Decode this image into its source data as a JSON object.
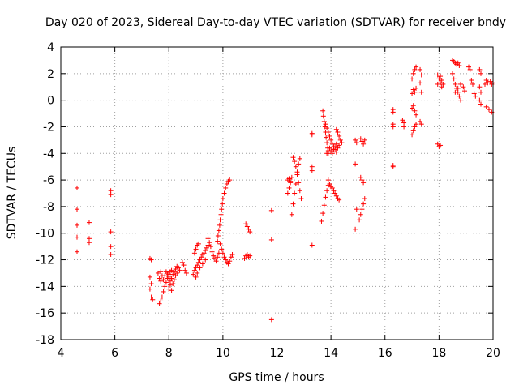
{
  "chart_data": {
    "type": "scatter",
    "title": "Day 020 of 2023, Sidereal Day-to-day VTEC variation (SDTVAR) for receiver bndy",
    "xlabel": "GPS time / hours",
    "ylabel": "SDTVAR / TECUs",
    "xlim": [
      4,
      20
    ],
    "ylim": [
      -18,
      4
    ],
    "xticks": [
      "4",
      "6",
      "8",
      "10",
      "12",
      "14",
      "16",
      "18",
      "20"
    ],
    "yticks": [
      "-18",
      "-16",
      "-14",
      "-12",
      "-10",
      "-8",
      "-6",
      "-4",
      "-2",
      "0",
      "2",
      "4"
    ],
    "grid": true,
    "marker": "+",
    "color": "#ff0000",
    "series": [
      {
        "name": "bndy",
        "points": [
          [
            4.6,
            -6.6
          ],
          [
            4.6,
            -8.2
          ],
          [
            4.6,
            -9.4
          ],
          [
            4.6,
            -10.3
          ],
          [
            4.6,
            -11.4
          ],
          [
            5.05,
            -9.2
          ],
          [
            5.05,
            -10.4
          ],
          [
            5.05,
            -10.7
          ],
          [
            5.85,
            -6.8
          ],
          [
            5.85,
            -7.1
          ],
          [
            5.85,
            -9.9
          ],
          [
            5.85,
            -11.0
          ],
          [
            5.85,
            -11.6
          ],
          [
            7.3,
            -11.9
          ],
          [
            7.35,
            -12.0
          ],
          [
            7.3,
            -13.3
          ],
          [
            7.35,
            -13.8
          ],
          [
            7.3,
            -14.2
          ],
          [
            7.35,
            -14.8
          ],
          [
            7.4,
            -15.0
          ],
          [
            7.65,
            -15.3
          ],
          [
            7.7,
            -15.1
          ],
          [
            7.75,
            -14.8
          ],
          [
            7.8,
            -14.4
          ],
          [
            7.85,
            -14.0
          ],
          [
            7.9,
            -13.7
          ],
          [
            7.95,
            -13.4
          ],
          [
            8.0,
            -13.1
          ],
          [
            8.05,
            -12.9
          ],
          [
            8.1,
            -12.8
          ],
          [
            7.7,
            -12.9
          ],
          [
            7.75,
            -13.2
          ],
          [
            7.8,
            -13.5
          ],
          [
            7.85,
            -13.2
          ],
          [
            7.9,
            -12.9
          ],
          [
            7.95,
            -13.0
          ],
          [
            8.0,
            -13.3
          ],
          [
            8.05,
            -13.6
          ],
          [
            8.1,
            -13.4
          ],
          [
            8.15,
            -13.1
          ],
          [
            8.2,
            -12.9
          ],
          [
            8.25,
            -12.7
          ],
          [
            8.3,
            -12.5
          ],
          [
            8.35,
            -12.6
          ],
          [
            8.4,
            -12.8
          ],
          [
            7.6,
            -13.0
          ],
          [
            7.65,
            -13.4
          ],
          [
            7.7,
            -13.6
          ],
          [
            8.0,
            -14.2
          ],
          [
            8.05,
            -13.9
          ],
          [
            8.1,
            -14.3
          ],
          [
            8.15,
            -13.8
          ],
          [
            8.2,
            -13.5
          ],
          [
            8.25,
            -13.2
          ],
          [
            8.3,
            -13.0
          ],
          [
            8.5,
            -12.2
          ],
          [
            8.55,
            -12.4
          ],
          [
            8.6,
            -12.8
          ],
          [
            8.65,
            -13.0
          ],
          [
            8.9,
            -13.1
          ],
          [
            8.95,
            -12.8
          ],
          [
            9.0,
            -12.6
          ],
          [
            9.05,
            -12.4
          ],
          [
            9.1,
            -12.2
          ],
          [
            9.15,
            -12.0
          ],
          [
            9.2,
            -11.8
          ],
          [
            9.25,
            -11.6
          ],
          [
            9.3,
            -11.5
          ],
          [
            9.35,
            -11.3
          ],
          [
            9.4,
            -11.1
          ],
          [
            9.45,
            -10.9
          ],
          [
            8.95,
            -11.5
          ],
          [
            9.0,
            -11.2
          ],
          [
            9.05,
            -10.9
          ],
          [
            9.1,
            -10.8
          ],
          [
            9.0,
            -13.3
          ],
          [
            9.05,
            -13.0
          ],
          [
            9.15,
            -12.6
          ],
          [
            9.25,
            -12.3
          ],
          [
            9.35,
            -12.0
          ],
          [
            9.45,
            -10.4
          ],
          [
            9.5,
            -10.7
          ],
          [
            9.55,
            -11.0
          ],
          [
            9.6,
            -11.4
          ],
          [
            9.65,
            -11.7
          ],
          [
            9.7,
            -11.9
          ],
          [
            9.75,
            -12.1
          ],
          [
            9.8,
            -11.8
          ],
          [
            9.85,
            -11.5
          ],
          [
            9.8,
            -10.6
          ],
          [
            9.82,
            -10.2
          ],
          [
            9.85,
            -9.8
          ],
          [
            9.88,
            -9.4
          ],
          [
            9.9,
            -9.0
          ],
          [
            9.93,
            -8.6
          ],
          [
            9.95,
            -8.2
          ],
          [
            9.98,
            -7.8
          ],
          [
            10.0,
            -7.4
          ],
          [
            10.05,
            -7.0
          ],
          [
            10.1,
            -6.6
          ],
          [
            10.15,
            -6.3
          ],
          [
            10.2,
            -6.1
          ],
          [
            10.25,
            -6.0
          ],
          [
            9.9,
            -10.8
          ],
          [
            9.95,
            -11.2
          ],
          [
            10.0,
            -11.5
          ],
          [
            10.05,
            -11.8
          ],
          [
            10.1,
            -12.0
          ],
          [
            10.15,
            -12.2
          ],
          [
            10.2,
            -12.3
          ],
          [
            10.25,
            -12.1
          ],
          [
            10.3,
            -11.8
          ],
          [
            10.35,
            -11.6
          ],
          [
            10.85,
            -9.3
          ],
          [
            10.9,
            -9.5
          ],
          [
            10.95,
            -9.7
          ],
          [
            11.0,
            -9.9
          ],
          [
            10.8,
            -11.9
          ],
          [
            10.85,
            -11.7
          ],
          [
            10.9,
            -11.6
          ],
          [
            10.95,
            -11.8
          ],
          [
            11.0,
            -11.7
          ],
          [
            11.8,
            -8.3
          ],
          [
            11.8,
            -10.5
          ],
          [
            11.8,
            -16.5
          ],
          [
            12.4,
            -7.0
          ],
          [
            12.45,
            -6.6
          ],
          [
            12.5,
            -6.2
          ],
          [
            12.55,
            -5.8
          ],
          [
            12.4,
            -6.0
          ],
          [
            12.45,
            -5.9
          ],
          [
            12.5,
            -6.1
          ],
          [
            12.55,
            -8.6
          ],
          [
            12.6,
            -7.8
          ],
          [
            12.65,
            -7.0
          ],
          [
            12.7,
            -6.3
          ],
          [
            12.75,
            -5.4
          ],
          [
            12.8,
            -4.8
          ],
          [
            12.85,
            -4.4
          ],
          [
            12.6,
            -4.3
          ],
          [
            12.65,
            -4.6
          ],
          [
            12.7,
            -5.0
          ],
          [
            12.75,
            -5.6
          ],
          [
            12.8,
            -6.2
          ],
          [
            12.85,
            -6.8
          ],
          [
            12.9,
            -7.4
          ],
          [
            13.3,
            -2.5
          ],
          [
            13.3,
            -2.6
          ],
          [
            13.3,
            -5.0
          ],
          [
            13.3,
            -5.3
          ],
          [
            13.3,
            -10.9
          ],
          [
            13.65,
            -9.1
          ],
          [
            13.7,
            -8.5
          ],
          [
            13.75,
            -7.9
          ],
          [
            13.8,
            -7.3
          ],
          [
            13.85,
            -6.8
          ],
          [
            13.9,
            -6.4
          ],
          [
            13.7,
            -0.8
          ],
          [
            13.72,
            -1.2
          ],
          [
            13.75,
            -1.6
          ],
          [
            13.78,
            -2.0
          ],
          [
            13.8,
            -2.4
          ],
          [
            13.82,
            -2.8
          ],
          [
            13.85,
            -3.2
          ],
          [
            13.88,
            -3.6
          ],
          [
            13.9,
            -4.0
          ],
          [
            13.8,
            -1.8
          ],
          [
            13.85,
            -2.1
          ],
          [
            13.9,
            -2.4
          ],
          [
            13.95,
            -2.7
          ],
          [
            14.0,
            -3.0
          ],
          [
            14.05,
            -3.3
          ],
          [
            14.1,
            -3.5
          ],
          [
            14.15,
            -3.7
          ],
          [
            14.2,
            -3.9
          ],
          [
            13.85,
            -4.0
          ],
          [
            13.9,
            -3.8
          ],
          [
            13.95,
            -3.6
          ],
          [
            14.0,
            -3.8
          ],
          [
            14.05,
            -4.0
          ],
          [
            14.1,
            -3.7
          ],
          [
            14.15,
            -3.5
          ],
          [
            14.2,
            -3.3
          ],
          [
            14.25,
            -3.6
          ],
          [
            14.3,
            -3.4
          ],
          [
            13.9,
            -6.0
          ],
          [
            13.95,
            -6.3
          ],
          [
            14.0,
            -6.5
          ],
          [
            14.05,
            -6.6
          ],
          [
            14.1,
            -6.8
          ],
          [
            14.15,
            -7.0
          ],
          [
            14.2,
            -7.2
          ],
          [
            14.25,
            -7.4
          ],
          [
            14.3,
            -7.5
          ],
          [
            14.2,
            -2.2
          ],
          [
            14.25,
            -2.4
          ],
          [
            14.3,
            -2.7
          ],
          [
            14.35,
            -3.0
          ],
          [
            14.4,
            -3.2
          ],
          [
            14.9,
            -3.0
          ],
          [
            14.95,
            -3.2
          ],
          [
            14.9,
            -4.8
          ],
          [
            14.95,
            -8.2
          ],
          [
            14.9,
            -9.7
          ],
          [
            15.1,
            -2.9
          ],
          [
            15.15,
            -3.1
          ],
          [
            15.2,
            -3.3
          ],
          [
            15.25,
            -3.0
          ],
          [
            15.1,
            -5.8
          ],
          [
            15.15,
            -6.0
          ],
          [
            15.2,
            -6.2
          ],
          [
            15.05,
            -9.0
          ],
          [
            15.1,
            -8.6
          ],
          [
            15.15,
            -8.2
          ],
          [
            15.2,
            -7.8
          ],
          [
            15.25,
            -7.4
          ],
          [
            16.3,
            -0.7
          ],
          [
            16.3,
            -0.9
          ],
          [
            16.3,
            -1.8
          ],
          [
            16.3,
            -2.0
          ],
          [
            16.3,
            -4.9
          ],
          [
            16.3,
            -5.0
          ],
          [
            16.65,
            -1.5
          ],
          [
            16.7,
            -1.7
          ],
          [
            16.7,
            -2.0
          ],
          [
            17.0,
            -2.6
          ],
          [
            17.05,
            -2.3
          ],
          [
            17.1,
            -2.0
          ],
          [
            17.15,
            -1.8
          ],
          [
            17.0,
            -0.6
          ],
          [
            17.05,
            -0.4
          ],
          [
            17.1,
            -0.8
          ],
          [
            17.15,
            -1.1
          ],
          [
            17.0,
            0.5
          ],
          [
            17.05,
            0.8
          ],
          [
            17.1,
            0.6
          ],
          [
            17.15,
            0.9
          ],
          [
            17.0,
            1.6
          ],
          [
            17.05,
            2.0
          ],
          [
            17.1,
            2.3
          ],
          [
            17.15,
            2.5
          ],
          [
            17.3,
            2.3
          ],
          [
            17.35,
            1.9
          ],
          [
            17.3,
            1.3
          ],
          [
            17.35,
            0.6
          ],
          [
            17.3,
            -1.6
          ],
          [
            17.35,
            -1.8
          ],
          [
            17.95,
            1.9
          ],
          [
            18.0,
            1.6
          ],
          [
            18.05,
            1.3
          ],
          [
            18.1,
            1.0
          ],
          [
            18.15,
            1.2
          ],
          [
            17.95,
            1.2
          ],
          [
            18.05,
            1.8
          ],
          [
            18.1,
            1.5
          ],
          [
            17.95,
            -3.3
          ],
          [
            18.0,
            -3.5
          ],
          [
            18.05,
            -3.4
          ],
          [
            18.5,
            3.0
          ],
          [
            18.55,
            2.9
          ],
          [
            18.6,
            2.8
          ],
          [
            18.65,
            2.7
          ],
          [
            18.7,
            2.8
          ],
          [
            18.75,
            2.6
          ],
          [
            18.5,
            2.0
          ],
          [
            18.55,
            1.6
          ],
          [
            18.6,
            1.2
          ],
          [
            18.65,
            0.9
          ],
          [
            18.7,
            0.6
          ],
          [
            18.75,
            0.3
          ],
          [
            18.8,
            0.0
          ],
          [
            18.6,
            0.6
          ],
          [
            18.7,
            0.9
          ],
          [
            18.8,
            1.2
          ],
          [
            18.9,
            1.0
          ],
          [
            18.95,
            0.7
          ],
          [
            19.1,
            2.5
          ],
          [
            19.15,
            2.3
          ],
          [
            19.2,
            1.5
          ],
          [
            19.25,
            1.2
          ],
          [
            19.3,
            0.5
          ],
          [
            19.35,
            0.3
          ],
          [
            19.5,
            2.3
          ],
          [
            19.55,
            2.0
          ],
          [
            19.5,
            1.0
          ],
          [
            19.55,
            0.6
          ],
          [
            19.5,
            0.0
          ],
          [
            19.55,
            -0.3
          ],
          [
            19.7,
            1.2
          ],
          [
            19.75,
            1.5
          ],
          [
            19.8,
            1.3
          ],
          [
            19.9,
            1.4
          ],
          [
            19.95,
            1.2
          ],
          [
            20.0,
            1.3
          ],
          [
            19.75,
            -0.5
          ],
          [
            19.85,
            -0.7
          ],
          [
            19.95,
            -0.9
          ]
        ]
      }
    ]
  }
}
